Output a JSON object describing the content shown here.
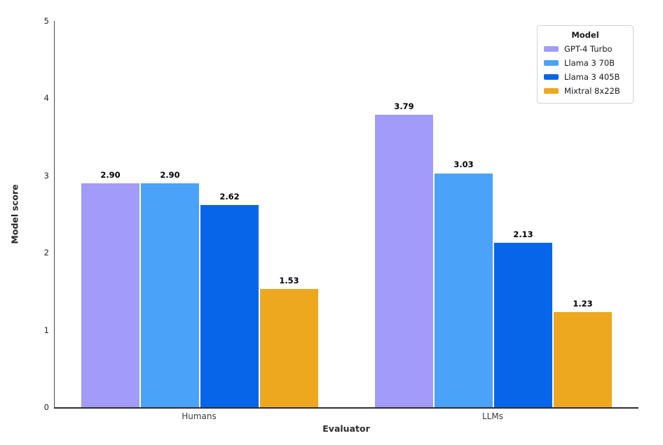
{
  "chart_data": {
    "type": "bar",
    "title": "",
    "xlabel": "Evaluator",
    "ylabel": "Model score",
    "legend_title": "Model",
    "legend_position": "upper right",
    "grid": false,
    "ylim": [
      0,
      5
    ],
    "yticks": [
      "0",
      "1",
      "2",
      "3",
      "4",
      "5"
    ],
    "categories": [
      "Humans",
      "LLMs"
    ],
    "series": [
      {
        "name": "GPT-4 Turbo",
        "color": "#a29bfa",
        "values": [
          2.9,
          3.79
        ],
        "labels": [
          "2.90",
          "3.79"
        ]
      },
      {
        "name": "Llama 3 70B",
        "color": "#4aa2f9",
        "values": [
          2.9,
          3.03
        ],
        "labels": [
          "2.90",
          "3.03"
        ]
      },
      {
        "name": "Llama 3 405B",
        "color": "#0665e8",
        "values": [
          2.62,
          2.13
        ],
        "labels": [
          "2.62",
          "2.13"
        ]
      },
      {
        "name": "Mixtral 8x22B",
        "color": "#eda820",
        "values": [
          1.53,
          1.23
        ],
        "labels": [
          "1.53",
          "1.23"
        ]
      }
    ]
  }
}
